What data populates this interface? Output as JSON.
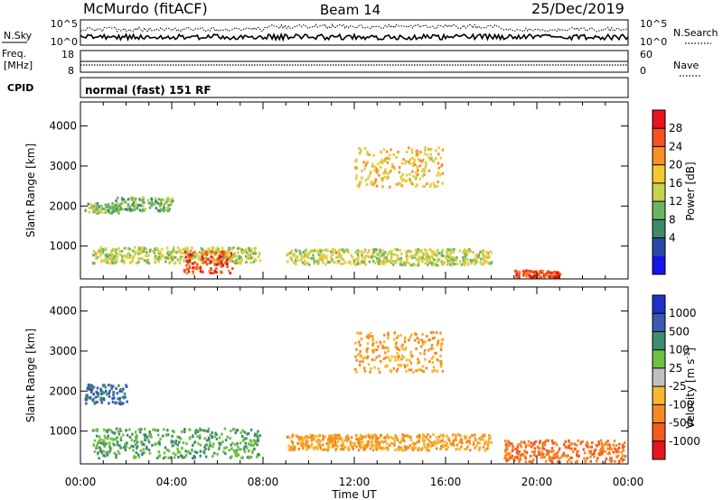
{
  "header": {
    "station": "McMurdo (fitACF)",
    "beam": "Beam 14",
    "date": "25/Dec/2019"
  },
  "noise_panel": {
    "left_label": "N.Sky",
    "right_label": "N.Search",
    "left_ticks": [
      "10^5",
      "10^0"
    ],
    "right_ticks": [
      "10^5",
      "10^0"
    ]
  },
  "freq_panel": {
    "left_label_1": "Freq.",
    "left_label_2": "[MHz]",
    "left_ticks": [
      "18",
      "8"
    ],
    "right_label": "Nave",
    "right_ticks": [
      "60",
      "0"
    ]
  },
  "cpid_panel": {
    "label": "CPID",
    "text": "normal (fast) 151 RF"
  },
  "chart_data": [
    {
      "type": "heatmap",
      "name": "power",
      "ylabel": "Slant Range [km]",
      "xlabel": "",
      "xlim": [
        "00:00",
        "24:00"
      ],
      "ylim": [
        180,
        4600
      ],
      "yticks": [
        "1000",
        "2000",
        "3000",
        "4000"
      ],
      "xticks": [
        "00:00",
        "04:00",
        "08:00",
        "12:00",
        "16:00",
        "20:00",
        "00:00"
      ],
      "colorbar_label": "Power [dB]",
      "colorbar_ticks": [
        "28",
        "24",
        "20",
        "16",
        "12",
        "8",
        "4"
      ],
      "colorbar_colors": [
        "#e8141c",
        "#f5501e",
        "#f8902a",
        "#f5c830",
        "#c8d24a",
        "#6ab464",
        "#3e8a6a",
        "#284aa6",
        "#1414e8"
      ],
      "features": [
        {
          "start": "00:10",
          "end": "01:40",
          "range_km": [
            1850,
            2100
          ],
          "level_db": 12
        },
        {
          "start": "01:30",
          "end": "04:00",
          "range_km": [
            1900,
            2250
          ],
          "level_db": 12
        },
        {
          "start": "00:30",
          "end": "07:50",
          "range_km": [
            600,
            1000
          ],
          "level_db": 16
        },
        {
          "start": "04:30",
          "end": "06:40",
          "range_km": [
            350,
            900
          ],
          "level_db": 28
        },
        {
          "start": "09:00",
          "end": "18:00",
          "range_km": [
            550,
            950
          ],
          "level_db": 16
        },
        {
          "start": "12:00",
          "end": "15:50",
          "range_km": [
            2500,
            3500
          ],
          "level_db": 20
        },
        {
          "start": "19:00",
          "end": "21:00",
          "range_km": [
            250,
            420
          ],
          "level_db": 28
        }
      ]
    },
    {
      "type": "heatmap",
      "name": "velocity",
      "ylabel": "Slant Range [km]",
      "xlabel": "Time UT",
      "xlim": [
        "00:00",
        "24:00"
      ],
      "ylim": [
        180,
        4600
      ],
      "yticks": [
        "1000",
        "2000",
        "3000",
        "4000"
      ],
      "xticks": [
        "00:00",
        "04:00",
        "08:00",
        "12:00",
        "16:00",
        "20:00",
        "00:00"
      ],
      "colorbar_label": "Velocity [m s",
      "colorbar_label_sup": "-1",
      "colorbar_label_end": "]",
      "colorbar_ticks": [
        "1000",
        "500",
        "100",
        "25",
        "-25",
        "-100",
        "-500",
        "-1000"
      ],
      "colorbar_colors": [
        "#1e32c8",
        "#3a5ab0",
        "#3f8c6e",
        "#70c040",
        "#c0c0c0",
        "#f5b830",
        "#f58a20",
        "#f55a1e",
        "#e8141c"
      ],
      "features": [
        {
          "start": "00:10",
          "end": "02:00",
          "range_km": [
            1700,
            2200
          ],
          "velocity_ms": 500
        },
        {
          "start": "00:30",
          "end": "07:50",
          "range_km": [
            350,
            1100
          ],
          "velocity_ms": 100
        },
        {
          "start": "09:00",
          "end": "18:00",
          "range_km": [
            550,
            950
          ],
          "velocity_ms": -100
        },
        {
          "start": "12:00",
          "end": "15:50",
          "range_km": [
            2500,
            3500
          ],
          "velocity_ms": -100
        },
        {
          "start": "18:30",
          "end": "23:50",
          "range_km": [
            250,
            800
          ],
          "velocity_ms": -500
        }
      ]
    }
  ]
}
